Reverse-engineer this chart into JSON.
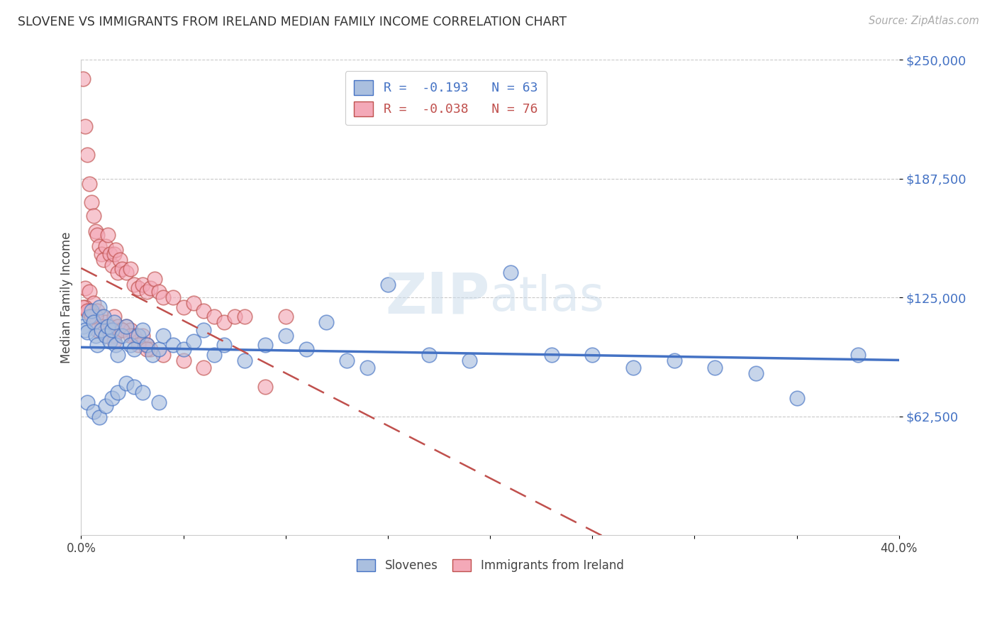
{
  "title": "SLOVENE VS IMMIGRANTS FROM IRELAND MEDIAN FAMILY INCOME CORRELATION CHART",
  "source": "Source: ZipAtlas.com",
  "ylabel": "Median Family Income",
  "x_min": 0.0,
  "x_max": 0.4,
  "y_min": 0,
  "y_max": 250000,
  "yticks": [
    62500,
    125000,
    187500,
    250000
  ],
  "ytick_labels": [
    "$62,500",
    "$125,000",
    "$187,500",
    "$250,000"
  ],
  "xticks": [
    0.0,
    0.05,
    0.1,
    0.15,
    0.2,
    0.25,
    0.3,
    0.35,
    0.4
  ],
  "legend_entries": [
    {
      "label": "R =  -0.193   N = 63",
      "color": "#4472c4"
    },
    {
      "label": "R =  -0.038   N = 76",
      "color": "#c0504d"
    }
  ],
  "legend_bottom": [
    "Slovenes",
    "Immigrants from Ireland"
  ],
  "slovene_color": "#aabfdf",
  "ireland_color": "#f4a9b8",
  "slovene_edge_color": "#4472c4",
  "ireland_edge_color": "#c0504d",
  "slovene_line_color": "#4472c4",
  "ireland_line_color": "#c0504d",
  "watermark": "ZIPAtlas",
  "background_color": "#ffffff",
  "grid_color": "#bbbbbb",
  "ytick_color": "#4472c4",
  "title_color": "#333333",
  "slovene_x": [
    0.001,
    0.002,
    0.003,
    0.004,
    0.005,
    0.006,
    0.007,
    0.008,
    0.009,
    0.01,
    0.011,
    0.012,
    0.013,
    0.014,
    0.015,
    0.016,
    0.017,
    0.018,
    0.02,
    0.022,
    0.024,
    0.026,
    0.028,
    0.03,
    0.032,
    0.035,
    0.038,
    0.04,
    0.045,
    0.05,
    0.055,
    0.06,
    0.065,
    0.07,
    0.08,
    0.09,
    0.1,
    0.11,
    0.12,
    0.13,
    0.14,
    0.15,
    0.17,
    0.19,
    0.21,
    0.23,
    0.25,
    0.27,
    0.29,
    0.31,
    0.33,
    0.35,
    0.38,
    0.003,
    0.006,
    0.009,
    0.012,
    0.015,
    0.018,
    0.022,
    0.026,
    0.03,
    0.038
  ],
  "slovene_y": [
    110000,
    108000,
    107000,
    115000,
    118000,
    112000,
    105000,
    100000,
    120000,
    108000,
    115000,
    105000,
    110000,
    102000,
    108000,
    112000,
    100000,
    95000,
    105000,
    110000,
    100000,
    98000,
    105000,
    108000,
    100000,
    95000,
    98000,
    105000,
    100000,
    98000,
    102000,
    108000,
    95000,
    100000,
    92000,
    100000,
    105000,
    98000,
    112000,
    92000,
    88000,
    132000,
    95000,
    92000,
    138000,
    95000,
    95000,
    88000,
    92000,
    88000,
    85000,
    72000,
    95000,
    70000,
    65000,
    62000,
    68000,
    72000,
    75000,
    80000,
    78000,
    75000,
    70000
  ],
  "ireland_x": [
    0.001,
    0.002,
    0.003,
    0.004,
    0.005,
    0.006,
    0.007,
    0.008,
    0.009,
    0.01,
    0.011,
    0.012,
    0.013,
    0.014,
    0.015,
    0.016,
    0.017,
    0.018,
    0.019,
    0.02,
    0.022,
    0.024,
    0.026,
    0.028,
    0.03,
    0.032,
    0.034,
    0.036,
    0.038,
    0.04,
    0.045,
    0.05,
    0.055,
    0.06,
    0.065,
    0.07,
    0.075,
    0.08,
    0.09,
    0.1,
    0.002,
    0.004,
    0.006,
    0.008,
    0.01,
    0.012,
    0.014,
    0.016,
    0.018,
    0.02,
    0.022,
    0.024,
    0.026,
    0.028,
    0.03,
    0.032,
    0.034,
    0.002,
    0.004,
    0.007,
    0.01,
    0.013,
    0.016,
    0.02,
    0.024,
    0.028,
    0.032,
    0.04,
    0.05,
    0.06,
    0.001,
    0.003,
    0.005,
    0.008,
    0.012,
    0.016
  ],
  "ireland_y": [
    240000,
    215000,
    200000,
    185000,
    175000,
    168000,
    160000,
    158000,
    152000,
    148000,
    145000,
    152000,
    158000,
    148000,
    142000,
    148000,
    150000,
    138000,
    145000,
    140000,
    138000,
    140000,
    132000,
    130000,
    132000,
    128000,
    130000,
    135000,
    128000,
    125000,
    125000,
    120000,
    122000,
    118000,
    115000,
    112000,
    115000,
    115000,
    78000,
    115000,
    130000,
    128000,
    122000,
    118000,
    115000,
    112000,
    110000,
    115000,
    110000,
    108000,
    110000,
    108000,
    105000,
    102000,
    105000,
    100000,
    98000,
    120000,
    118000,
    115000,
    110000,
    108000,
    105000,
    108000,
    105000,
    100000,
    98000,
    95000,
    92000,
    88000,
    120000,
    118000,
    115000,
    108000,
    105000,
    102000
  ]
}
